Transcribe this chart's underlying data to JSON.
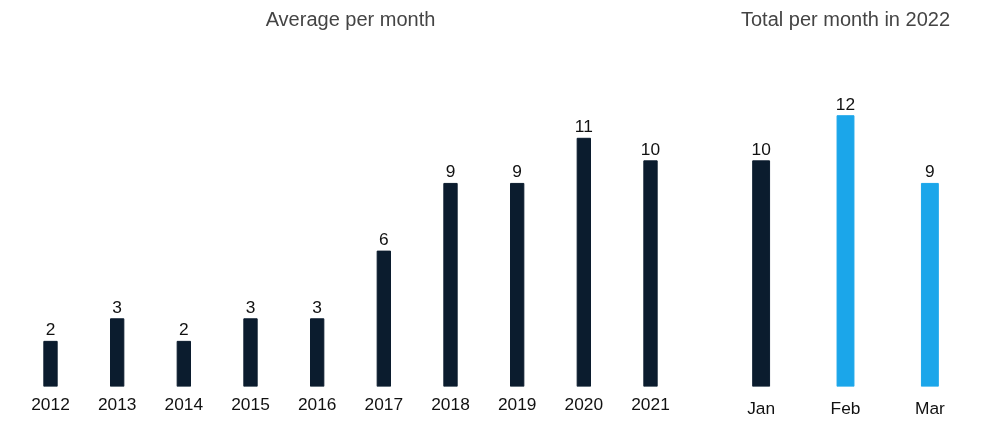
{
  "chart_data": [
    {
      "type": "bar",
      "title": "Average per month",
      "categories": [
        "2012",
        "2013",
        "2014",
        "2015",
        "2016",
        "2017",
        "2018",
        "2019",
        "2020",
        "2021"
      ],
      "values": [
        2,
        3,
        2,
        3,
        3,
        6,
        9,
        9,
        11,
        10
      ],
      "color": "#0b1c2e",
      "data_labels": true
    },
    {
      "type": "bar",
      "title": "Total per month in 2022",
      "categories": [
        "Jan",
        "Feb",
        "Mar"
      ],
      "values": [
        10,
        12,
        9
      ],
      "colors": [
        "#0b1c2e",
        "#1ba6ea",
        "#1ba6ea"
      ],
      "data_labels": true
    }
  ]
}
